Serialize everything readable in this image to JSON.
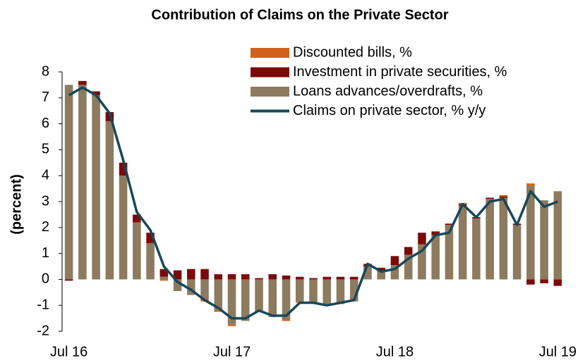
{
  "chart_data": {
    "type": "stacked-bar-line",
    "title": "Contribution of Claims on the Private Sector",
    "ylabel": "(percent)",
    "categories": [
      "Jul 16",
      null,
      null,
      null,
      null,
      null,
      null,
      null,
      null,
      null,
      null,
      null,
      "Jul 17",
      null,
      null,
      null,
      null,
      null,
      null,
      null,
      null,
      null,
      null,
      null,
      "Jul 18",
      null,
      null,
      null,
      null,
      null,
      null,
      null,
      null,
      null,
      null,
      null,
      "Jul 19"
    ],
    "series": [
      {
        "name": "Discounted bills, %",
        "color": "#d2601a",
        "kind": "bar",
        "values": [
          0,
          0,
          0,
          0,
          0,
          0,
          0,
          -0.05,
          0,
          0,
          -0.1,
          -0.05,
          -0.05,
          0,
          0,
          0,
          -0.05,
          -0.05,
          0,
          0,
          -0.05,
          0,
          0,
          0,
          0,
          0,
          0,
          0,
          0,
          0.05,
          0,
          0,
          0.05,
          0,
          0.1,
          0,
          0
        ]
      },
      {
        "name": "Investment in private securities, %",
        "color": "#7b0a0a",
        "kind": "bar",
        "values": [
          -0.05,
          0.15,
          0.15,
          0.35,
          0.5,
          0.3,
          0.4,
          0.3,
          0.35,
          0.4,
          0.4,
          0.2,
          0.2,
          0.2,
          0.05,
          0.2,
          0.15,
          0.1,
          0.05,
          0.1,
          0.1,
          0.1,
          0.1,
          0.1,
          0.35,
          0.3,
          0.45,
          0.15,
          0.05,
          0.05,
          0.05,
          0.05,
          0.05,
          0.05,
          -0.2,
          -0.15,
          -0.25
        ]
      },
      {
        "name": "Loans advances/overdrafts, %",
        "color": "#8c7b5e",
        "kind": "bar",
        "values": [
          7.5,
          7.5,
          7.1,
          6.1,
          4.0,
          2.2,
          1.4,
          0.1,
          -0.45,
          -0.6,
          -0.75,
          -1.2,
          -1.75,
          -1.6,
          -1.25,
          -1.45,
          -1.55,
          -0.85,
          -0.9,
          -0.95,
          -0.9,
          -0.85,
          0.5,
          0.35,
          0.55,
          0.95,
          1.35,
          1.7,
          2.1,
          2.85,
          2.35,
          3.1,
          3.15,
          2.1,
          3.6,
          3.05,
          3.4
        ]
      },
      {
        "name": "Claims on private sector, % y/y",
        "color": "#17475a",
        "kind": "line",
        "values": [
          7.1,
          7.4,
          7.1,
          6.4,
          4.6,
          2.6,
          1.9,
          0.5,
          -0.1,
          -0.4,
          -0.8,
          -1.1,
          -1.5,
          -1.5,
          -1.2,
          -1.4,
          -1.4,
          -0.9,
          -0.9,
          -1.0,
          -0.9,
          -0.8,
          0.6,
          0.3,
          0.4,
          0.8,
          1.1,
          1.7,
          1.8,
          2.9,
          2.4,
          3.0,
          3.1,
          2.1,
          3.4,
          2.8,
          3.0
        ]
      }
    ],
    "ylim": [
      -2,
      8
    ],
    "yticks": [
      -2,
      -1,
      0,
      1,
      2,
      3,
      4,
      5,
      6,
      7,
      8
    ],
    "legend": "top-right"
  }
}
